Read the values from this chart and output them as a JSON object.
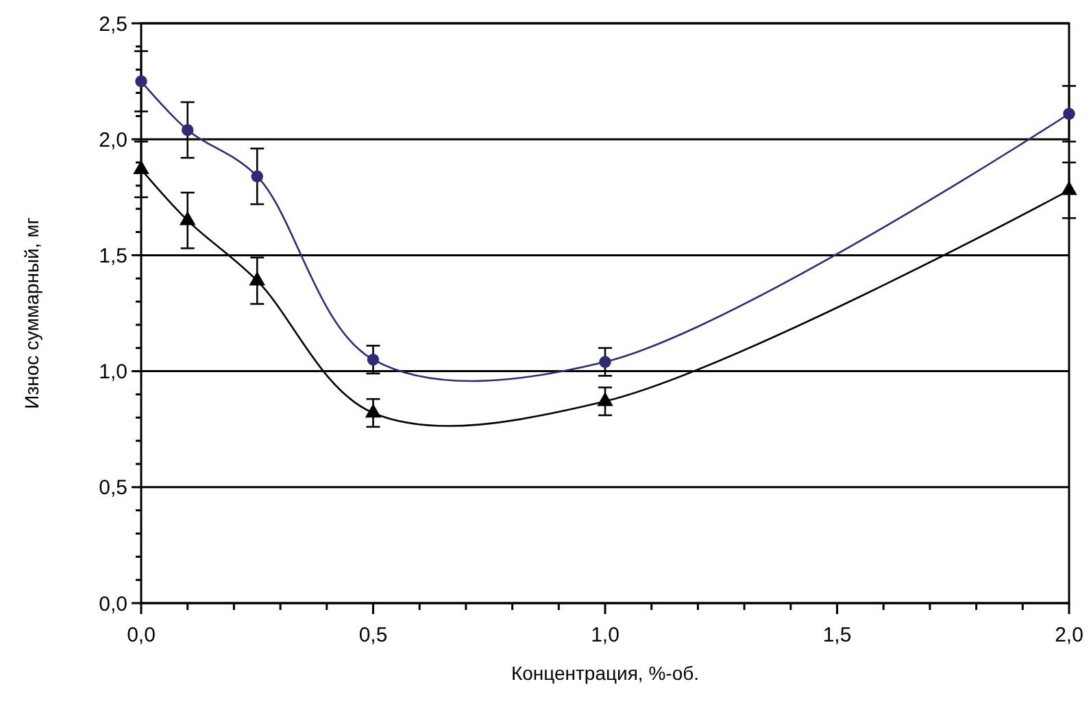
{
  "chart_data": {
    "type": "line",
    "xlabel": "Концентрация, %-об.",
    "ylabel": "Износ суммарный, мг",
    "xlim": [
      0,
      2
    ],
    "ylim": [
      0,
      2.5
    ],
    "xticks": [
      {
        "value": 0,
        "label": "0,0"
      },
      {
        "value": 0.1,
        "label": null
      },
      {
        "value": 0.2,
        "label": null
      },
      {
        "value": 0.3,
        "label": null
      },
      {
        "value": 0.4,
        "label": null
      },
      {
        "value": 0.5,
        "label": "0,5"
      },
      {
        "value": 0.6,
        "label": null
      },
      {
        "value": 0.7,
        "label": null
      },
      {
        "value": 0.8,
        "label": null
      },
      {
        "value": 0.9,
        "label": null
      },
      {
        "value": 1,
        "label": "1,0"
      },
      {
        "value": 1.1,
        "label": null
      },
      {
        "value": 1.2,
        "label": null
      },
      {
        "value": 1.3,
        "label": null
      },
      {
        "value": 1.4,
        "label": null
      },
      {
        "value": 1.5,
        "label": "1,5"
      },
      {
        "value": 1.6,
        "label": null
      },
      {
        "value": 1.7,
        "label": null
      },
      {
        "value": 1.8,
        "label": null
      },
      {
        "value": 1.9,
        "label": null
      },
      {
        "value": 2,
        "label": "2,0"
      }
    ],
    "yticks": [
      {
        "value": 0,
        "label": "0,0"
      },
      {
        "value": 0.1,
        "label": null
      },
      {
        "value": 0.2,
        "label": null
      },
      {
        "value": 0.3,
        "label": null
      },
      {
        "value": 0.4,
        "label": null
      },
      {
        "value": 0.5,
        "label": "0,5"
      },
      {
        "value": 0.6,
        "label": null
      },
      {
        "value": 0.7,
        "label": null
      },
      {
        "value": 0.8,
        "label": null
      },
      {
        "value": 0.9,
        "label": null
      },
      {
        "value": 1,
        "label": "1,0"
      },
      {
        "value": 1.1,
        "label": null
      },
      {
        "value": 1.2,
        "label": null
      },
      {
        "value": 1.3,
        "label": null
      },
      {
        "value": 1.4,
        "label": null
      },
      {
        "value": 1.5,
        "label": "1,5"
      },
      {
        "value": 1.6,
        "label": null
      },
      {
        "value": 1.7,
        "label": null
      },
      {
        "value": 1.8,
        "label": null
      },
      {
        "value": 1.9,
        "label": null
      },
      {
        "value": 2,
        "label": "2,0"
      },
      {
        "value": 2.1,
        "label": null
      },
      {
        "value": 2.2,
        "label": null
      },
      {
        "value": 2.3,
        "label": null
      },
      {
        "value": 2.4,
        "label": null
      },
      {
        "value": 2.5,
        "label": "2,5"
      }
    ],
    "grid": "y",
    "x": [
      0,
      0.1,
      0.25,
      0.5,
      1,
      2
    ],
    "series": [
      {
        "color": "#2e2a78",
        "marker": "circle",
        "values": [
          2.25,
          2.04,
          1.84,
          1.05,
          1.04,
          2.11
        ],
        "errors": [
          0.13,
          0.12,
          0.12,
          0.06,
          0.06,
          0.12
        ]
      },
      {
        "color": "#000000",
        "marker": "triangle",
        "values": [
          1.87,
          1.65,
          1.39,
          0.82,
          0.87,
          1.78
        ],
        "errors": [
          0.12,
          0.12,
          0.1,
          0.06,
          0.06,
          0.12
        ]
      }
    ]
  }
}
